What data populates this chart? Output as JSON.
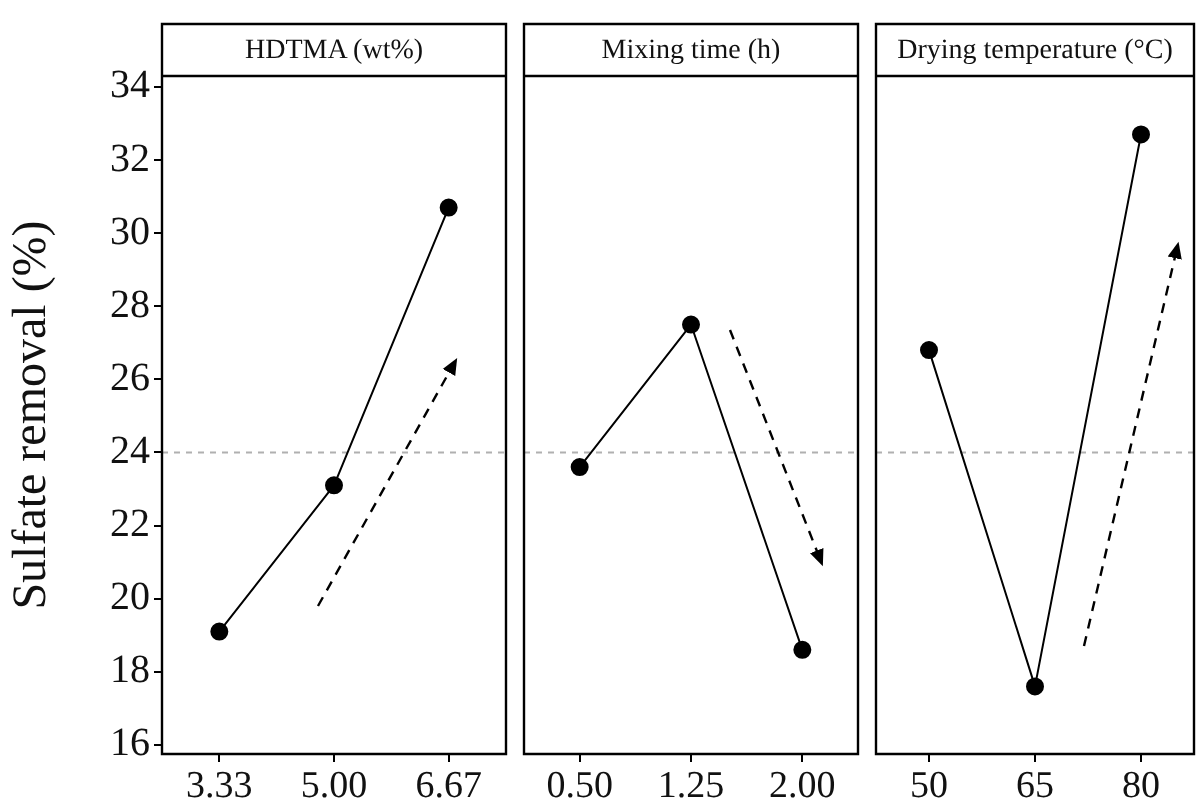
{
  "chart_data": [
    {
      "type": "line",
      "title": "HDTMA (wt%)",
      "ylabel": "Sulfate removal (%)",
      "categories": [
        "3.33",
        "5.00",
        "6.67"
      ],
      "series": [
        {
          "color": "#000000",
          "values": [
            19.1,
            23.1,
            30.7
          ]
        }
      ],
      "ylim": [
        15.75,
        34.3
      ],
      "yticks": [
        16,
        18,
        20,
        22,
        24,
        26,
        28,
        30,
        32,
        34
      ],
      "marker": "circle",
      "ref_lines": [
        {
          "axis": "y",
          "value": 24,
          "color": "#b0b0b0",
          "line_style": "dashed"
        }
      ]
    },
    {
      "type": "line",
      "title": "Mixing time (h)",
      "categories": [
        "0.50",
        "1.25",
        "2.00"
      ],
      "series": [
        {
          "color": "#000000",
          "values": [
            23.6,
            27.5,
            18.6
          ]
        }
      ],
      "ylim": [
        15.75,
        34.3
      ],
      "tick_labels": "x",
      "marker": "circle",
      "ref_lines": [
        {
          "axis": "y",
          "value": 24,
          "color": "#b0b0b0",
          "line_style": "dashed"
        }
      ]
    },
    {
      "type": "line",
      "title": "Drying temperature (°C)",
      "categories": [
        "50",
        "65",
        "80"
      ],
      "series": [
        {
          "color": "#000000",
          "values": [
            26.8,
            17.6,
            32.7
          ]
        }
      ],
      "ylim": [
        15.75,
        34.3
      ],
      "tick_labels": "x",
      "marker": "circle",
      "ref_lines": [
        {
          "axis": "y",
          "value": 24,
          "color": "#b0b0b0",
          "line_style": "dashed"
        }
      ]
    }
  ]
}
